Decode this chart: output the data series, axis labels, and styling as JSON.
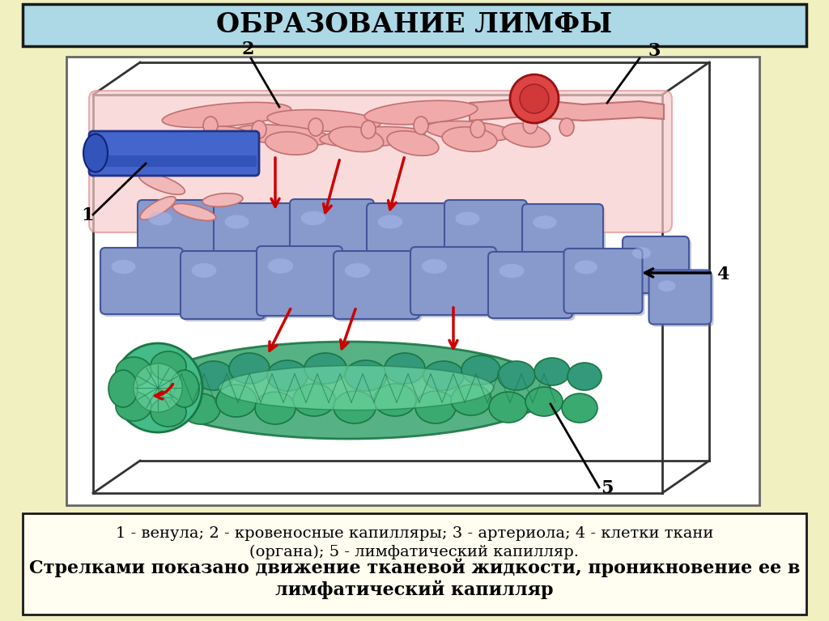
{
  "background_color": "#f0f0c0",
  "title": "ОБРАЗОВАНИЕ ЛИМФЫ",
  "title_bg": "#add8e6",
  "title_border": "#1a1a1a",
  "title_fontsize": 24,
  "caption_line1": "1 - венула; 2 - кровеносные капилляры; 3 - артериола; 4 - клетки ткани",
  "caption_line2": "(органа); 5 - лимфатический капилляр.",
  "caption_bold": "Стрелками показано движение тканевой жидкости, проникновение ее в\nлимфатический капилляр",
  "caption_fontsize": 14,
  "caption_bold_fontsize": 16,
  "diagram_bg": "#ffffff",
  "pink_capillary": "#f5b8b8",
  "pink_dark": "#e07070",
  "blue_venule": "#5577cc",
  "blue_cell": "#7788cc",
  "blue_cell_dark": "#445599",
  "green_lymph": "#3aaa78",
  "green_lymph_dark": "#1a7744",
  "green_lymph_light": "#66cc99",
  "red_blood_cell": "#dd3333",
  "arrow_red": "#cc0000",
  "arrow_black": "#111111",
  "box_edge": "#333333"
}
